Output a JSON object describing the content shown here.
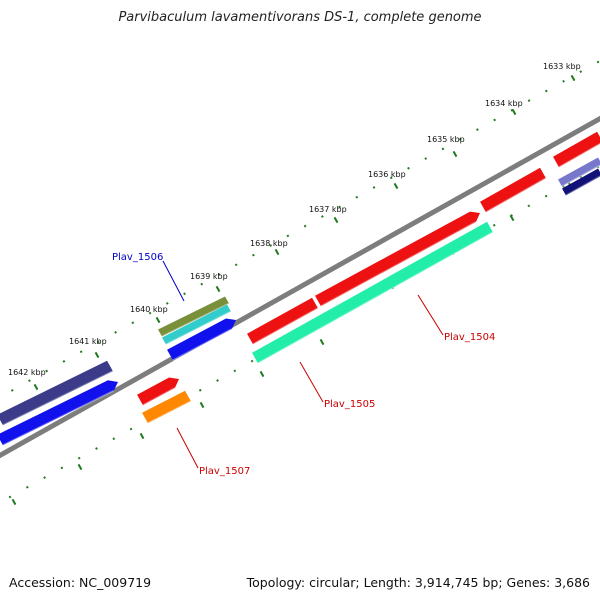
{
  "title": "Parvibaculum lavamentivorans DS-1, complete genome",
  "footer": {
    "accession": "Accession: NC_009719",
    "topology": "Topology: circular; Length: 3,914,745 bp; Genes: 3,686"
  },
  "scale": {
    "ticks": [
      {
        "label": "1633 kbp"
      },
      {
        "label": "1634 kbp"
      },
      {
        "label": "1635 kbp"
      },
      {
        "label": "1636 kbp"
      },
      {
        "label": "1637 kbp"
      },
      {
        "label": "1638 kbp"
      },
      {
        "label": "1639 kbp"
      },
      {
        "label": "1640 kbp"
      },
      {
        "label": "1641 kbp"
      },
      {
        "label": "1642 kbp"
      }
    ]
  },
  "genes": [
    {
      "label": "Plav_1504",
      "color": "#cc0000"
    },
    {
      "label": "Plav_1505",
      "color": "#cc0000"
    },
    {
      "label": "Plav_1506",
      "color": "#0000cc"
    },
    {
      "label": "Plav_1507",
      "color": "#cc0000"
    }
  ],
  "colors": {
    "backbone": "#8a8a8a",
    "tick_marks": "#1f7a1f",
    "red_feature": "#ee1111",
    "teal_feature": "#22eeaa",
    "blue_feature": "#1111ee",
    "navy_feature": "#3b3b8a",
    "olive_feature": "#7a8f3a",
    "cyan_feature": "#33cccc",
    "orange_feature": "#ff8800"
  }
}
